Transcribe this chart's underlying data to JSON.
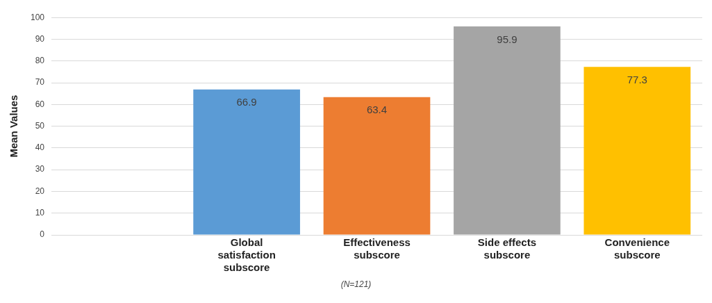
{
  "chart_data": {
    "type": "bar",
    "ylabel": "Mean Values",
    "categories": [
      null,
      "Global satisfaction subscore",
      "Effectiveness subscore",
      "Side effects subscore",
      "Convenience subscore"
    ],
    "values": [
      null,
      66.9,
      63.4,
      95.9,
      77.3
    ],
    "colors": [
      "#5b9bd5",
      "#5b9bd5",
      "#ed7d31",
      "#a5a5a5",
      "#ffc000"
    ],
    "ylim": [
      0,
      100
    ],
    "yticks": [
      0,
      10,
      20,
      30,
      40,
      50,
      60,
      70,
      80,
      90,
      100
    ],
    "grid": "y",
    "legend": false,
    "data_labels": true,
    "annotations": [
      "(N=121)"
    ]
  }
}
